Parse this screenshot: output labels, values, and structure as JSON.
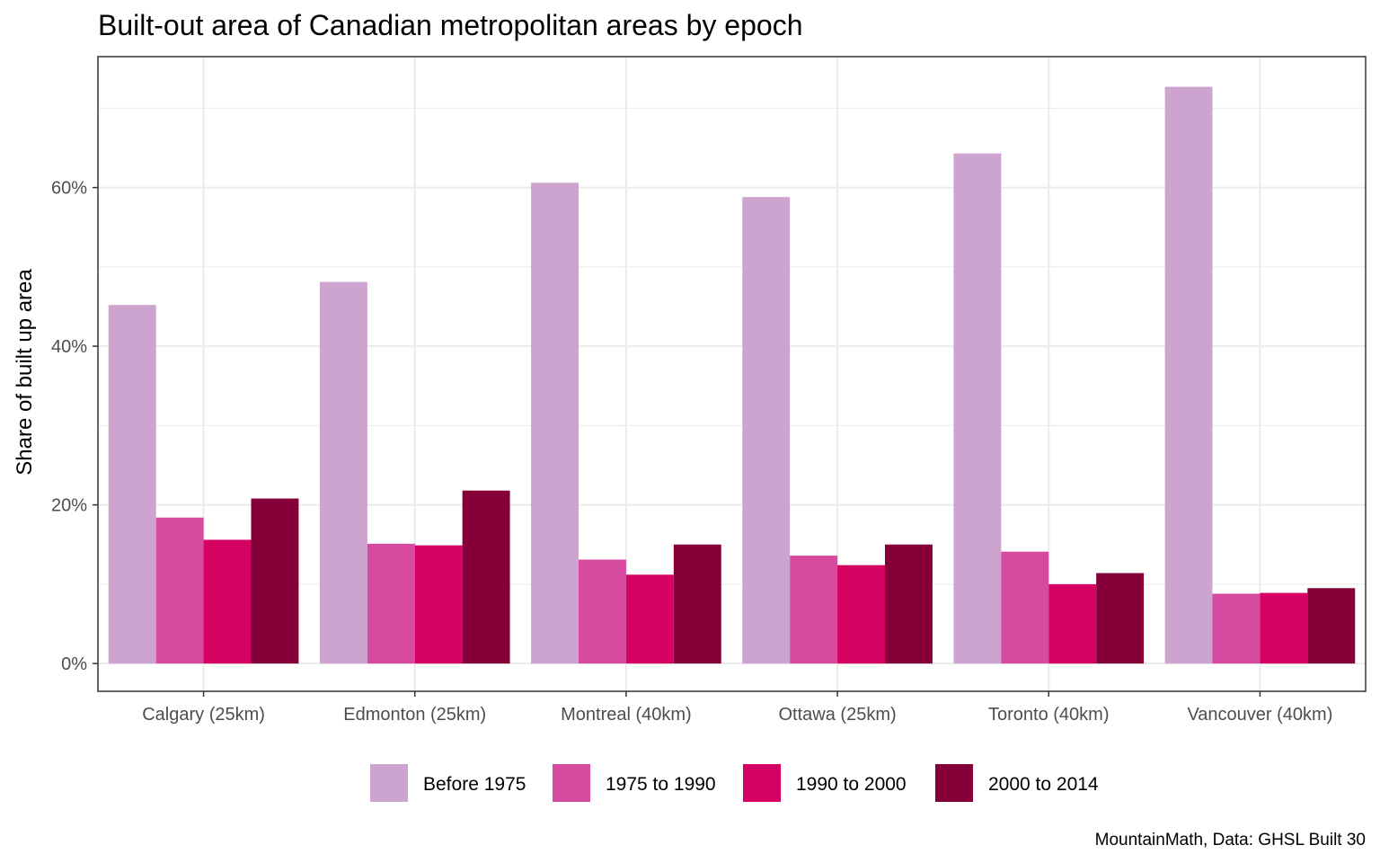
{
  "chart_data": {
    "type": "bar",
    "title": "Built-out area of Canadian metropolitan areas by epoch",
    "ylabel": "Share of built up area",
    "xlabel": "",
    "caption": "MountainMath, Data: GHSL Built 30",
    "categories": [
      "Calgary (25km)",
      "Edmonton (25km)",
      "Montreal (40km)",
      "Ottawa (25km)",
      "Toronto (40km)",
      "Vancouver (40km)"
    ],
    "ylim": [
      -0.035,
      0.765
    ],
    "y_ticks": [
      0,
      0.2,
      0.4,
      0.6
    ],
    "y_tick_labels": [
      "0%",
      "20%",
      "40%",
      "60%"
    ],
    "y_minor_ticks": [
      0.1,
      0.3,
      0.5,
      0.7
    ],
    "grid": true,
    "legend_position": "bottom",
    "series": [
      {
        "name": "Before 1975",
        "color": "#CCA4CF",
        "values": [
          0.452,
          0.481,
          0.606,
          0.588,
          0.643,
          0.727
        ]
      },
      {
        "name": "1975 to 1990",
        "color": "#D64AA0",
        "values": [
          0.184,
          0.151,
          0.131,
          0.136,
          0.141,
          0.088
        ]
      },
      {
        "name": "1990 to 2000",
        "color": "#D60263",
        "values": [
          0.156,
          0.149,
          0.112,
          0.124,
          0.1,
          0.089
        ]
      },
      {
        "name": "2000 to 2014",
        "color": "#850038",
        "values": [
          0.208,
          0.218,
          0.15,
          0.15,
          0.114,
          0.095
        ]
      }
    ]
  }
}
